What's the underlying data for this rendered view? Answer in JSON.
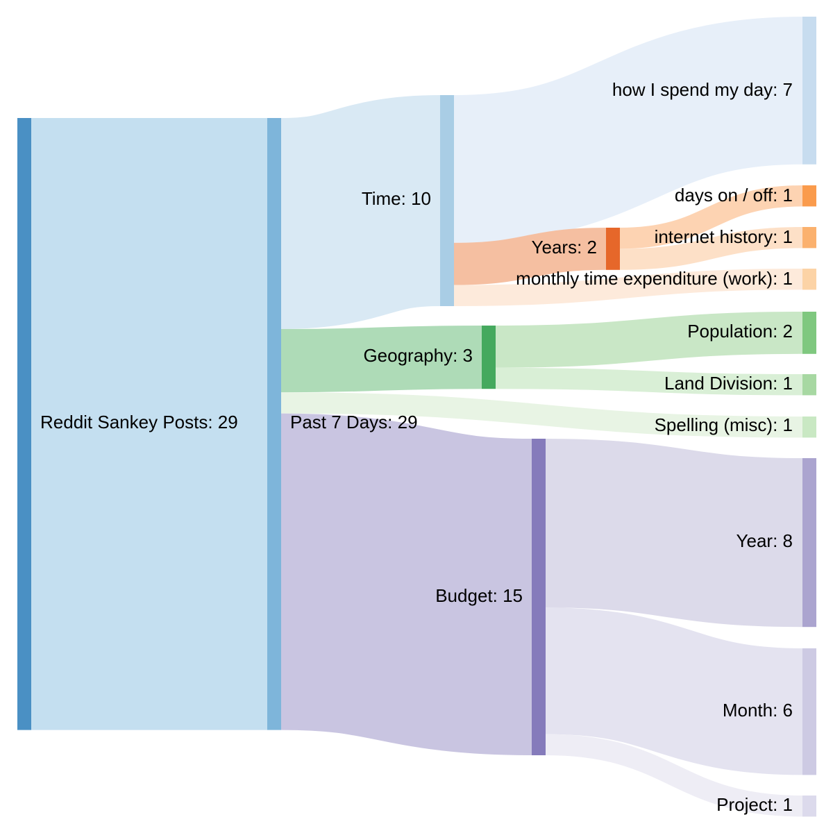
{
  "nodes": [
    {
      "id": "reddit",
      "label": "Reddit Sankey Posts: 29",
      "color": "#4a90c4"
    },
    {
      "id": "past7",
      "label": "Past 7 Days: 29",
      "color": "#7eb5da"
    },
    {
      "id": "time",
      "label": "Time: 10",
      "color": "#a9cde5"
    },
    {
      "id": "geo",
      "label": "Geography: 3",
      "color": "#45a95e"
    },
    {
      "id": "budget",
      "label": "Budget: 15",
      "color": "#857bbb"
    },
    {
      "id": "years",
      "label": "Years: 2",
      "color": "#e6672a"
    },
    {
      "id": "howday",
      "label": "how I spend my day: 7",
      "color": "#c7dcef"
    },
    {
      "id": "dayson",
      "label": "days on / off: 1",
      "color": "#fa9b4c"
    },
    {
      "id": "internet",
      "label": "internet history: 1",
      "color": "#fbb16e"
    },
    {
      "id": "monthly",
      "label": "monthly time expenditure (work): 1",
      "color": "#fcd3a6"
    },
    {
      "id": "population",
      "label": "Population: 2",
      "color": "#7fc87f"
    },
    {
      "id": "land",
      "label": "Land Division: 1",
      "color": "#a7d8a2"
    },
    {
      "id": "spelling",
      "label": "Spelling (misc): 1",
      "color": "#c9e8c3"
    },
    {
      "id": "year",
      "label": "Year: 8",
      "color": "#aba4cf"
    },
    {
      "id": "month",
      "label": "Month: 6",
      "color": "#cdcae3"
    },
    {
      "id": "project",
      "label": "Project: 1",
      "color": "#dcdaec"
    }
  ],
  "links": [
    {
      "source": "reddit",
      "target": "past7",
      "value": 29,
      "color": "#c4dff0"
    },
    {
      "source": "past7",
      "target": "time",
      "value": 10,
      "color": "#d9e9f4"
    },
    {
      "source": "past7",
      "target": "geo",
      "value": 3,
      "color": "#aedbb7"
    },
    {
      "source": "past7",
      "target": "spelling",
      "value": 1,
      "color": "#e8f4e4"
    },
    {
      "source": "past7",
      "target": "budget",
      "value": 15,
      "color": "#c9c5e1"
    },
    {
      "source": "time",
      "target": "howday",
      "value": 7,
      "color": "#e7eff9"
    },
    {
      "source": "time",
      "target": "years",
      "value": 2,
      "color": "#f5bfa1"
    },
    {
      "source": "time",
      "target": "monthly",
      "value": 1,
      "color": "#fdeadb"
    },
    {
      "source": "years",
      "target": "dayson",
      "value": 1,
      "color": "#fdd3b2"
    },
    {
      "source": "years",
      "target": "internet",
      "value": 1,
      "color": "#fde0c7"
    },
    {
      "source": "geo",
      "target": "population",
      "value": 2,
      "color": "#c9e7c6"
    },
    {
      "source": "geo",
      "target": "land",
      "value": 1,
      "color": "#d9efd6"
    },
    {
      "source": "budget",
      "target": "year",
      "value": 8,
      "color": "#dcdaea"
    },
    {
      "source": "budget",
      "target": "month",
      "value": 6,
      "color": "#e4e3f0"
    },
    {
      "source": "budget",
      "target": "project",
      "value": 1,
      "color": "#eeedf5"
    }
  ]
}
